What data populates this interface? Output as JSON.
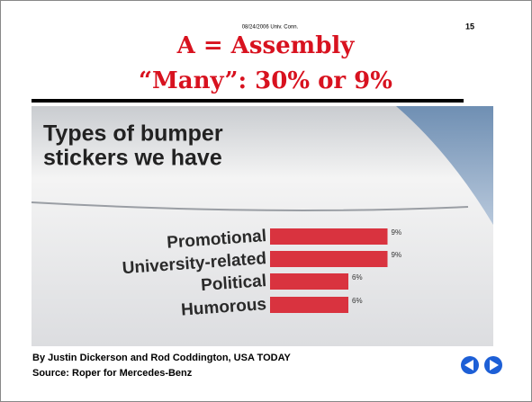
{
  "slide": {
    "date": "08/24/2006 Univ. Conn.",
    "number": "15",
    "title_lines": [
      "A = Assembly",
      "“Many”: 30% or 9%"
    ],
    "credit": "By Justin Dickerson and Rod Coddington, USA TODAY",
    "source": "Source: Roper for Mercedes-Benz"
  },
  "chart_data": {
    "type": "hbar",
    "title_lines": [
      "Types of bumper",
      "stickers we have"
    ],
    "categories": [
      "Promotional",
      "University-related",
      "Political",
      "Humorous"
    ],
    "values": [
      9,
      9,
      6,
      6
    ],
    "value_labels": [
      "9%",
      "9%",
      "6%",
      "6%"
    ],
    "color": "#d9333f"
  }
}
